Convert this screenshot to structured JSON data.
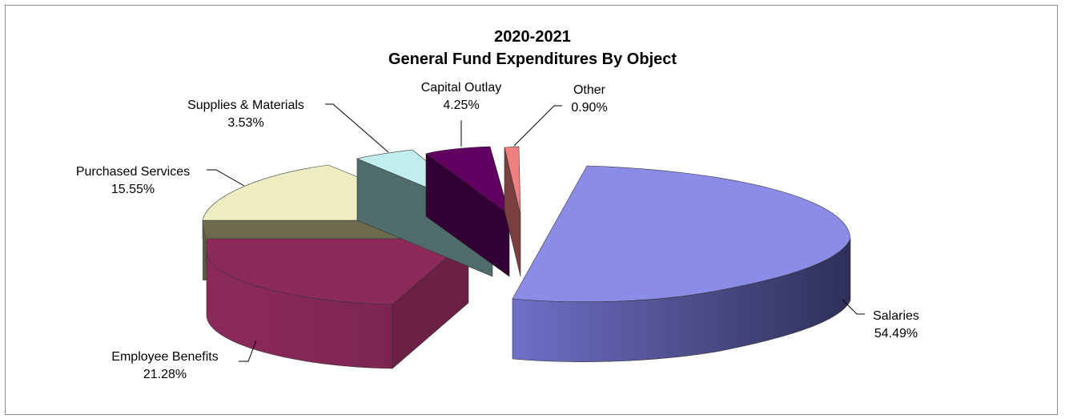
{
  "chart_data": {
    "type": "pie",
    "title_line1": "2020-2021",
    "title_line2": "General Fund Expenditures By Object",
    "slices": [
      {
        "name": "Salaries",
        "percent_label": "54.49%",
        "value": 54.49,
        "color": "#8b8ce8"
      },
      {
        "name": "Employee Benefits",
        "percent_label": "21.28%",
        "value": 21.28,
        "color": "#8c2b5a"
      },
      {
        "name": "Purchased Services",
        "percent_label": "15.55%",
        "value": 15.55,
        "color": "#ededc1"
      },
      {
        "name": "Supplies & Materials",
        "percent_label": "3.53%",
        "value": 3.53,
        "color": "#c0eeee"
      },
      {
        "name": "Capital Outlay",
        "percent_label": "4.25%",
        "value": 4.25,
        "color": "#620062"
      },
      {
        "name": "Other",
        "percent_label": "0.90%",
        "value": 0.9,
        "color": "#f08080"
      }
    ],
    "legend": "none",
    "style": "3d-exploded"
  }
}
